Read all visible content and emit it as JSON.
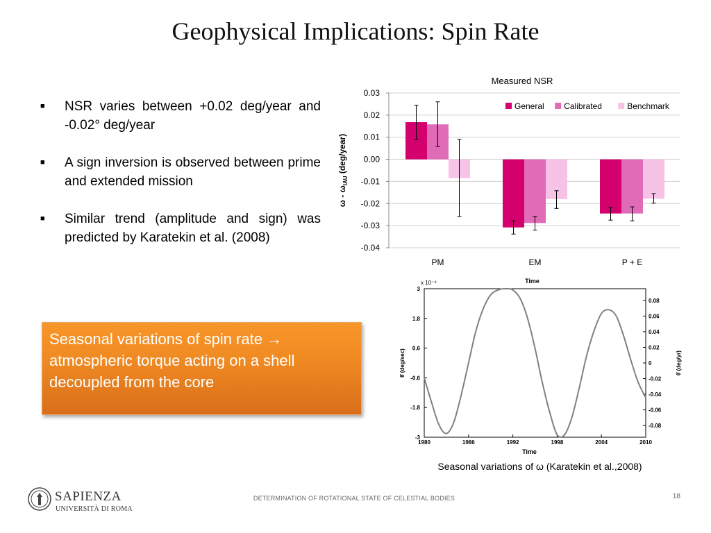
{
  "slide": {
    "title": "Geophysical Implications: Spin Rate",
    "bullets": [
      "NSR varies between +0.02 deg/year and -0.02° deg/year",
      "A sign inversion is observed between prime and extended mission",
      " Similar trend (amplitude and sign) was predicted by Karatekin et al. (2008)"
    ],
    "callout": "Seasonal variations of spin rate → atmospheric torque acting on a shell decoupled from the core",
    "footer_text": "DETERMINATION OF ROTATIONAL STATE OF CELESTIAL BODIES",
    "page_number": "18",
    "logo": {
      "name": "SAPIENZA",
      "subtitle": "UNIVERSITÀ DI ROMA"
    }
  },
  "chart_data": [
    {
      "type": "bar",
      "title": "Measured NSR",
      "ylabel": "ω - ωIAU (deg/year)",
      "categories": [
        "PM",
        "EM",
        "P + E"
      ],
      "ylim": [
        -0.04,
        0.03
      ],
      "yticks": [
        "0.03",
        "0.02",
        "0.01",
        "0.00",
        "-0.01",
        "-0.02",
        "-0.03",
        "-0.04"
      ],
      "legend_position": "top-right",
      "grid": true,
      "series": [
        {
          "name": "General",
          "color": "#d4006e",
          "values": [
            0.0168,
            -0.0308,
            -0.0245
          ],
          "err_low": [
            0.009,
            -0.0338,
            -0.0275
          ],
          "err_high": [
            0.0245,
            -0.0278,
            -0.0218
          ]
        },
        {
          "name": "Calibrated",
          "color": "#e06bb6",
          "values": [
            0.0158,
            -0.0288,
            -0.0245
          ],
          "err_low": [
            0.0058,
            -0.032,
            -0.0278
          ],
          "err_high": [
            0.026,
            -0.0258,
            -0.0215
          ]
        },
        {
          "name": "Benchmark",
          "color": "#f6c2e6",
          "values": [
            -0.0085,
            -0.018,
            -0.0178
          ],
          "err_low": [
            -0.0258,
            -0.0222,
            -0.0198
          ],
          "err_high": [
            0.009,
            -0.0142,
            -0.0155
          ]
        }
      ]
    },
    {
      "type": "line",
      "xlabel": "Time",
      "top_label": "Time",
      "ylabel_left": "θ̇ (deg/sec)",
      "ylabel_right": "θ̇ (deg/yr)",
      "y_scale_label": "x 10⁻⁹",
      "xlim": [
        1980,
        2010
      ],
      "ylim_left": [
        -3,
        3
      ],
      "xticks": [
        "1980",
        "1986",
        "1992",
        "1998",
        "2004",
        "2010"
      ],
      "yticks_left": [
        "3",
        "1.8",
        "0.6",
        "-0.6",
        "-1.8",
        "-3"
      ],
      "yticks_right": [
        "0.08",
        "0.06",
        "0.04",
        "0.02",
        "0",
        "-0.02",
        "-0.04",
        "-0.06",
        "-0.08"
      ],
      "x": [
        1980,
        1981,
        1982,
        1983,
        1984,
        1985,
        1986,
        1987,
        1988,
        1989,
        1990,
        1991,
        1992,
        1993,
        1994,
        1995,
        1996,
        1997,
        1998,
        1999,
        2000,
        2001,
        2002,
        2003,
        2004,
        2005,
        2006,
        2007,
        2008,
        2009,
        2010
      ],
      "y": [
        -0.6,
        -1.6,
        -2.5,
        -2.85,
        -2.4,
        -1.3,
        0.0,
        1.3,
        2.2,
        2.75,
        2.95,
        3.0,
        2.95,
        2.6,
        1.8,
        0.6,
        -0.8,
        -2.0,
        -2.9,
        -2.9,
        -2.2,
        -1.0,
        0.3,
        1.3,
        2.0,
        2.15,
        1.9,
        1.1,
        0.1,
        -0.8,
        -1.4
      ],
      "color": "#808080",
      "caption": "Seasonal variations of ω (Karatekin et al.,2008)"
    }
  ]
}
